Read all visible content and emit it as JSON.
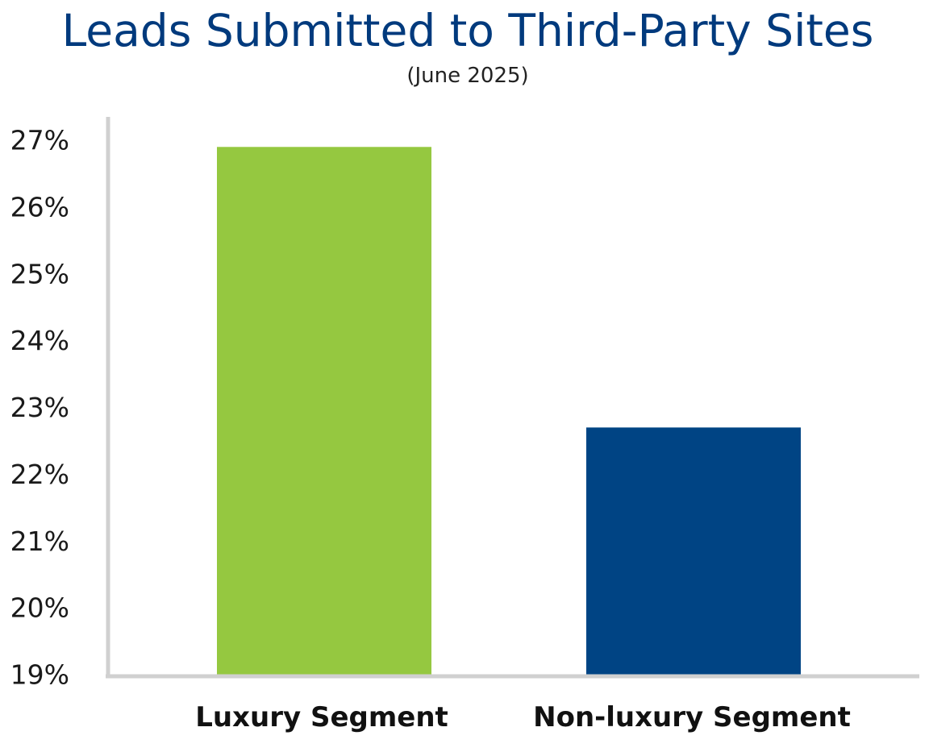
{
  "chart_data": {
    "type": "bar",
    "title": "Leads Submitted to Third-Party Sites",
    "subtitle": "(June 2025)",
    "categories": [
      "Luxury Segment",
      "Non-luxury Segment"
    ],
    "values": [
      26.9,
      22.7
    ],
    "colors": [
      "#95c840",
      "#004484"
    ],
    "ylim": [
      19,
      27
    ],
    "yticks": [
      "19%",
      "20%",
      "21%",
      "22%",
      "23%",
      "24%",
      "25%",
      "26%",
      "27%"
    ],
    "xlabel": "",
    "ylabel": "",
    "grid": false,
    "legend": "none",
    "axis_color": "#d0d0d0"
  }
}
